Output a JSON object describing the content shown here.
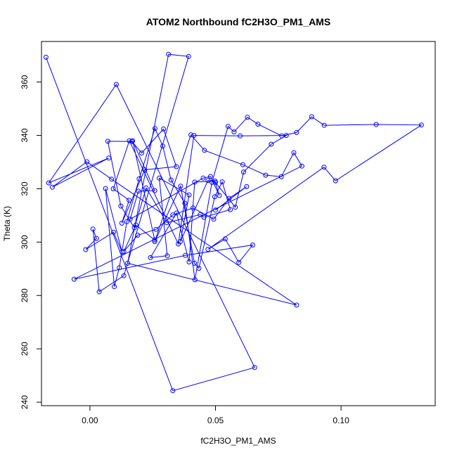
{
  "chart_data": {
    "type": "line",
    "title": "ATOM2 Northbound fC2H3O_PM1_AMS",
    "xlabel": "fC2H3O_PM1_AMS",
    "ylabel": "Theta (K)",
    "xlim": [
      -0.0193,
      0.1375
    ],
    "ylim": [
      238.7,
      375.2
    ],
    "x_ticks": [
      0.0,
      0.05,
      0.1
    ],
    "x_tick_labels": [
      "0.00",
      "0.05",
      "0.10"
    ],
    "y_ticks": [
      240,
      260,
      280,
      300,
      320,
      340,
      360
    ],
    "y_tick_labels": [
      "240",
      "260",
      "280",
      "300",
      "320",
      "340",
      "360"
    ],
    "grid": false,
    "line_color": "#0000ff",
    "markers": "open-circle",
    "series": [
      {
        "points": [
          [
            -0.0175,
            369.3
          ],
          [
            0.033,
            244.3
          ],
          [
            0.0656,
            253.0
          ],
          [
            0.0105,
            359.1
          ],
          [
            -0.0164,
            322.2
          ],
          [
            0.0075,
            331.5
          ],
          [
            -0.015,
            320.6
          ],
          [
            -0.0012,
            330.1
          ],
          [
            0.0086,
            323.6
          ],
          [
            0.0823,
            276.4
          ],
          [
            0.015,
            292.1
          ],
          [
            0.0313,
            370.4
          ],
          [
            0.0393,
            369.6
          ],
          [
            0.0135,
            287.4
          ],
          [
            0.0037,
            281.4
          ],
          [
            0.0012,
            304.9
          ],
          [
            0.0026,
            301.4
          ],
          [
            -0.0017,
            297.2
          ],
          [
            0.0094,
            303.7
          ],
          [
            0.0128,
            296.3
          ],
          [
            0.0062,
            320.1
          ],
          [
            0.0097,
            283.3
          ],
          [
            0.0117,
            290.4
          ],
          [
            0.0147,
            307.7
          ],
          [
            0.0196,
            323.7
          ],
          [
            0.0259,
            342.6
          ],
          [
            0.029,
            336.0
          ],
          [
            0.0323,
            323.3
          ],
          [
            0.0378,
            314.6
          ],
          [
            0.0418,
            285.9
          ],
          [
            0.0486,
            322.4
          ],
          [
            0.055,
            343.4
          ],
          [
            0.0574,
            341.3
          ],
          [
            0.0627,
            346.8
          ],
          [
            0.0669,
            344.2
          ],
          [
            0.0764,
            339.8
          ],
          [
            0.0823,
            341.1
          ],
          [
            0.0883,
            347.0
          ],
          [
            0.0933,
            343.8
          ],
          [
            0.114,
            344.1
          ],
          [
            0.132,
            343.9
          ],
          [
            0.0978,
            323.0
          ],
          [
            0.0932,
            328.1
          ],
          [
            0.047,
            297.3
          ],
          [
            0.0539,
            301.2
          ],
          [
            0.0593,
            292.4
          ],
          [
            0.0648,
            298.9
          ],
          [
            0.038,
            295.0
          ],
          [
            -0.0063,
            286.1
          ],
          [
            0.0844,
            328.5
          ],
          [
            0.0812,
            333.5
          ],
          [
            0.0762,
            324.5
          ],
          [
            0.07,
            325.1
          ],
          [
            0.0609,
            329.0
          ],
          [
            0.0456,
            334.4
          ],
          [
            0.0402,
            340.2
          ],
          [
            0.0258,
            300.2
          ],
          [
            0.0361,
            321.0
          ],
          [
            0.0416,
            292.1
          ],
          [
            0.0434,
            290.2
          ],
          [
            0.0497,
            317.0
          ],
          [
            0.0527,
            322.6
          ],
          [
            0.0559,
            312.2
          ],
          [
            0.0454,
            309.3
          ],
          [
            0.0439,
            310.3
          ],
          [
            0.0306,
            307.3
          ],
          [
            0.0224,
            320.3
          ],
          [
            0.0177,
            305.4
          ],
          [
            0.0123,
            313.5
          ],
          [
            0.0071,
            337.8
          ],
          [
            0.0167,
            337.7
          ],
          [
            0.0206,
            333.4
          ],
          [
            0.0293,
            342.4
          ],
          [
            0.0344,
            328.3
          ],
          [
            0.0218,
            327.1
          ],
          [
            0.0127,
            307.1
          ],
          [
            0.0156,
            315.7
          ],
          [
            0.0093,
            320.0
          ],
          [
            0.0157,
            338.0
          ],
          [
            0.0352,
            299.3
          ],
          [
            0.0414,
            340.0
          ],
          [
            0.0598,
            339.8
          ],
          [
            0.0782,
            340.0
          ],
          [
            0.0722,
            336.7
          ],
          [
            0.0612,
            326.3
          ],
          [
            0.0579,
            313.1
          ],
          [
            0.05,
            322.4
          ],
          [
            0.047,
            323.1
          ],
          [
            0.036,
            300.2
          ],
          [
            0.0395,
            317.7
          ],
          [
            0.0276,
            324.0
          ],
          [
            0.0308,
            294.9
          ],
          [
            0.0241,
            294.2
          ],
          [
            0.0345,
            310.9
          ],
          [
            0.0395,
            292.6
          ],
          [
            0.0417,
            322.5
          ],
          [
            0.0498,
            322.9
          ],
          [
            0.0515,
            317.5
          ],
          [
            0.048,
            324.6
          ],
          [
            0.0451,
            324.0
          ],
          [
            0.016,
            308.6
          ],
          [
            0.0193,
            319.1
          ],
          [
            0.0258,
            319.3
          ],
          [
            0.017,
            338.0
          ],
          [
            0.0258,
            300.8
          ],
          [
            0.0183,
            306.4
          ],
          [
            0.0135,
            296.5
          ],
          [
            0.019,
            302.6
          ],
          [
            0.0263,
            304.8
          ],
          [
            0.033,
            310.2
          ],
          [
            0.041,
            312.8
          ],
          [
            0.0493,
            308.6
          ],
          [
            0.0554,
            316.4
          ],
          [
            0.0624,
            320.8
          ],
          [
            0.05,
            312.0
          ]
        ]
      }
    ]
  }
}
